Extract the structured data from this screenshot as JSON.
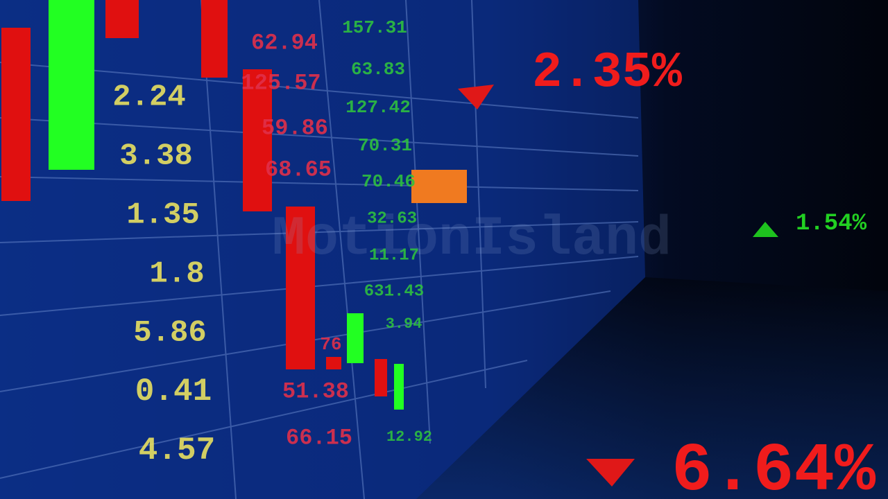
{
  "board": {
    "yellow_column": [
      "2.24",
      "3.38",
      "1.35",
      "1.8",
      "5.86",
      "0.41",
      "4.57"
    ],
    "red_column": [
      "62.94",
      "125.57",
      "59.86",
      "68.65",
      "76",
      "51.38",
      "66.15"
    ],
    "green_column": [
      "157.31",
      "63.83",
      "127.42",
      "70.31",
      "70.46",
      "32.63",
      "11.17",
      "631.43",
      "3.94",
      "12.92"
    ]
  },
  "indicators": [
    {
      "text": "2.35%",
      "direction": "down"
    },
    {
      "text": "1.54%",
      "direction": "up"
    },
    {
      "text": "6.64%",
      "direction": "down"
    }
  ],
  "watermark": "MotionIsland"
}
